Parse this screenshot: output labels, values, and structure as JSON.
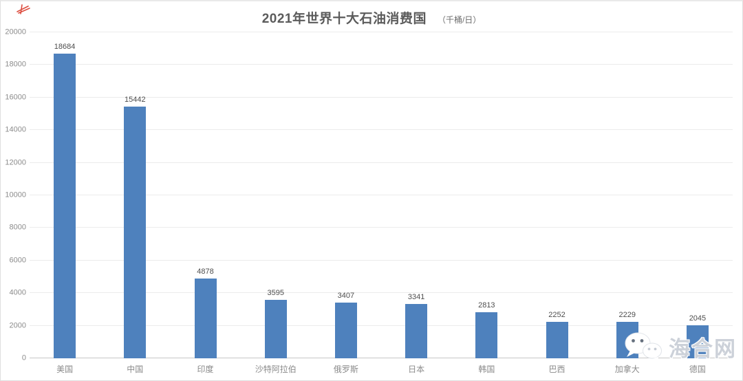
{
  "title": {
    "text": "2021年世界十大石油消费国",
    "unit": "（千桶/日）"
  },
  "chart_data": {
    "type": "bar",
    "title": "2021年世界十大石油消费国",
    "unit_label": "（千桶/日）",
    "categories": [
      "美国",
      "中国",
      "印度",
      "沙特阿拉伯",
      "俄罗斯",
      "日本",
      "韩国",
      "巴西",
      "加拿大",
      "德国"
    ],
    "values": [
      18684,
      15442,
      4878,
      3595,
      3407,
      3341,
      2813,
      2252,
      2229,
      2045
    ],
    "ylim": [
      0,
      20000
    ],
    "ytick_interval": 2000,
    "yticks": [
      0,
      2000,
      4000,
      6000,
      8000,
      10000,
      12000,
      14000,
      16000,
      18000,
      20000
    ],
    "grid": true,
    "legend": false,
    "value_labels_shown": true,
    "bar_color": "#4e81bd"
  },
  "watermark": {
    "icon": "wechat-icon",
    "text": "海合网"
  },
  "colors": {
    "bar": "#4e81bd",
    "grid_line": "#ebebeb",
    "axis_line": "#c6c6c6",
    "tick_label": "#8c8c8c",
    "value_label": "#4d4d4d",
    "title": "#5b5b5b",
    "watermark_text": "#ccd1d9",
    "corner_mark": "#d93a2b"
  }
}
